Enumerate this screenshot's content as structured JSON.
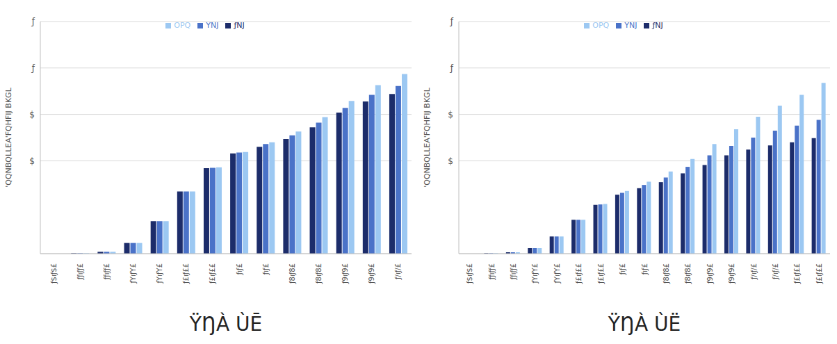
{
  "chart_data": [
    {
      "type": "bar",
      "title": "ŸŊÀ ÙĒ",
      "y_label": "'QQNBQLLEA'FQHFIJ BKGL",
      "categories": [
        "ƒ$ıƒ$£",
        "ƒƒıƒƒ£",
        "ƒƒıƒƒ£",
        "ƒYıƒY£",
        "ƒYıƒY£",
        "ƒ£ıƒ££",
        "ƒ£ıƒ££",
        "ƒıƒ£",
        "ƒıƒ£",
        "ƒ8ıƒ8£",
        "ƒ8ıƒ8£",
        "ƒ9ıƒ9£",
        "ƒ9ıƒ9£",
        "ƒ/ıƒ/£"
      ],
      "series": [
        {
          "name": "ƒNJ",
          "color": "#1c2c6a",
          "values": [
            0,
            0.01,
            0.04,
            0.23,
            0.7,
            1.34,
            1.84,
            2.16,
            2.3,
            2.47,
            2.72,
            3.04,
            3.28,
            3.44
          ]
        },
        {
          "name": "YNJ",
          "color": "#4a72c8",
          "values": [
            0,
            0.01,
            0.04,
            0.23,
            0.7,
            1.34,
            1.85,
            2.18,
            2.36,
            2.55,
            2.82,
            3.14,
            3.42,
            3.61
          ]
        },
        {
          "name": "OPQ",
          "color": "#9cc8f2",
          "values": [
            0,
            0.01,
            0.04,
            0.23,
            0.7,
            1.34,
            1.86,
            2.19,
            2.4,
            2.63,
            2.94,
            3.29,
            3.63,
            3.87
          ]
        }
      ],
      "ylim": [
        0,
        5
      ],
      "yticks": [
        {
          "value": 2,
          "label": "$"
        },
        {
          "value": 3,
          "label": "$"
        },
        {
          "value": 4,
          "label": "ƒ"
        },
        {
          "value": 5,
          "label": "ƒ"
        }
      ],
      "grid": true,
      "legend": "top"
    },
    {
      "type": "bar",
      "title": "ŸŊÀ ÙË",
      "y_label": "'QQNBQLLEA'FQHFIJ BKGL",
      "categories": [
        "ƒ$ıƒ$£",
        "ƒƒıƒƒ£",
        "ƒƒıƒƒ£",
        "ƒYıƒY£",
        "ƒYıƒY£",
        "ƒ£ıƒ££",
        "ƒ£ıƒ££",
        "ƒıƒ£",
        "ƒıƒ£",
        "ƒ8ıƒ8£",
        "ƒ8ıƒ8£",
        "ƒ9ıƒ9£",
        "ƒ9ıƒ9£",
        "ƒ/ıƒ/£",
        "ƒ/ıƒ/£",
        "ƒ£ıƒ££",
        "ƒ£ıƒ££"
      ],
      "series": [
        {
          "name": "ƒNJ",
          "color": "#1c2c6a",
          "values": [
            0,
            0.01,
            0.03,
            0.12,
            0.37,
            0.73,
            1.05,
            1.27,
            1.41,
            1.54,
            1.73,
            1.91,
            2.12,
            2.24,
            2.33,
            2.4,
            2.49
          ]
        },
        {
          "name": "YNJ",
          "color": "#4a72c8",
          "values": [
            0,
            0.01,
            0.03,
            0.12,
            0.37,
            0.73,
            1.06,
            1.31,
            1.48,
            1.64,
            1.87,
            2.12,
            2.32,
            2.5,
            2.65,
            2.76,
            2.88
          ]
        },
        {
          "name": "OPQ",
          "color": "#9cc8f2",
          "values": [
            0,
            0.01,
            0.03,
            0.12,
            0.37,
            0.73,
            1.07,
            1.35,
            1.55,
            1.77,
            2.04,
            2.36,
            2.68,
            2.95,
            3.19,
            3.42,
            3.68
          ]
        }
      ],
      "ylim": [
        0,
        5
      ],
      "yticks": [
        {
          "value": 2,
          "label": "$"
        },
        {
          "value": 3,
          "label": "$"
        },
        {
          "value": 4,
          "label": "ƒ"
        },
        {
          "value": 5,
          "label": "ƒ"
        }
      ],
      "grid": true,
      "legend": "top"
    }
  ]
}
